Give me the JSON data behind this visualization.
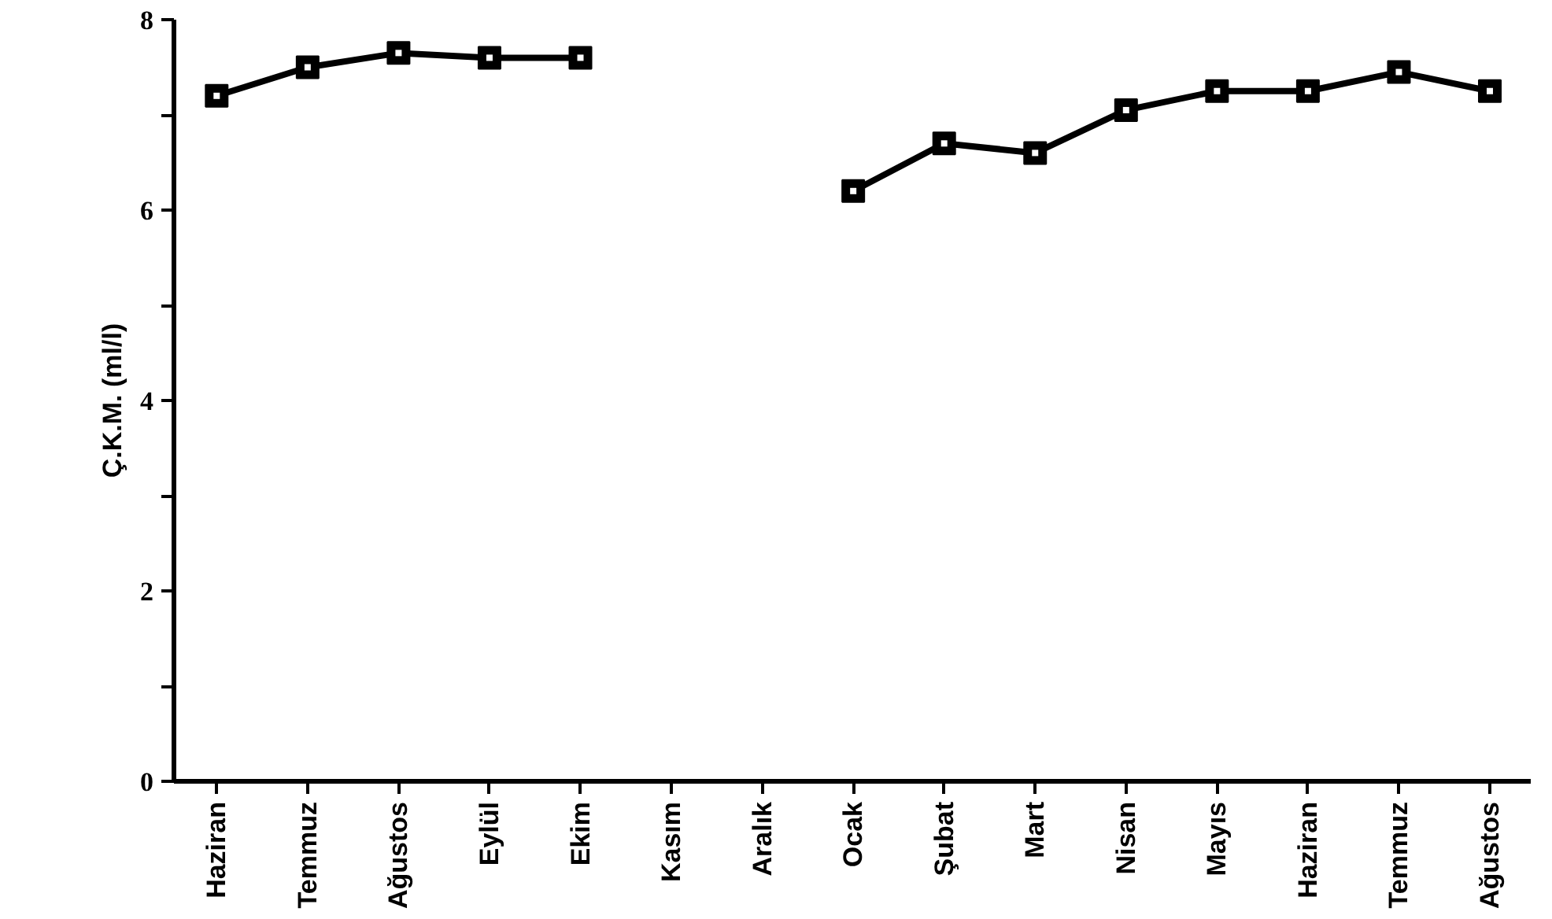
{
  "chart_data": {
    "type": "line",
    "ylabel": "Ç.K.M. (ml/l)",
    "categories": [
      "Haziran",
      "Temmuz",
      "Ağustos",
      "Eylül",
      "Ekim",
      "Kasım",
      "Aralık",
      "Ocak",
      "Şubat",
      "Mart",
      "Nisan",
      "Mayıs",
      "Haziran",
      "Temmuz",
      "Ağustos"
    ],
    "series": [
      {
        "color": "#000000",
        "values": [
          7.2,
          7.5,
          7.65,
          7.6,
          7.6,
          null,
          null,
          6.2,
          6.7,
          6.6,
          7.05,
          7.25,
          7.25,
          7.45,
          7.25
        ]
      }
    ],
    "ylim": [
      0,
      8
    ],
    "yticks": [
      0,
      {
        "value": 1,
        "label": null
      },
      2,
      {
        "value": 3,
        "label": null
      },
      4,
      {
        "value": 5,
        "label": null
      },
      6,
      {
        "value": 7,
        "label": null
      },
      8
    ],
    "marker": "square",
    "line_style": "solid"
  }
}
